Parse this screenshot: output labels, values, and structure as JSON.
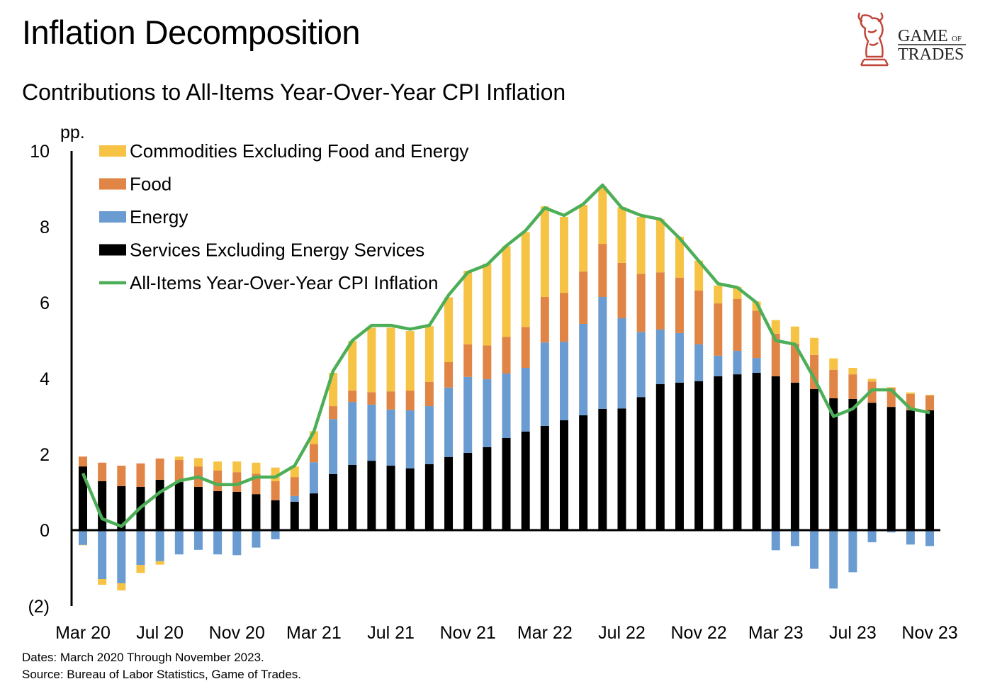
{
  "header": {
    "title": "Inflation Decomposition",
    "subtitle": "Contributions to All-Items Year-Over-Year CPI Inflation"
  },
  "logo": {
    "line1": "GAME",
    "of": "OF",
    "line2": "TRADES"
  },
  "footer": {
    "dates": "Dates: March 2020 Through November 2023.",
    "source": "Source: Bureau of Labor Statistics, Game of Trades."
  },
  "chart_data": {
    "type": "bar",
    "stacked": true,
    "title": "Contributions to All-Items Year-Over-Year CPI Inflation",
    "ylabel": "pp.",
    "ylim": [
      -2,
      10
    ],
    "yticks": [
      10,
      8,
      6,
      4,
      2,
      0,
      -2
    ],
    "ytick_labels": [
      "10",
      "8",
      "6",
      "4",
      "2",
      "0",
      "(2)"
    ],
    "grid": false,
    "legend_position": "top-left",
    "categories": [
      "Mar 20",
      "Apr 20",
      "May 20",
      "Jun 20",
      "Jul 20",
      "Aug 20",
      "Sep 20",
      "Oct 20",
      "Nov 20",
      "Dec 20",
      "Jan 21",
      "Feb 21",
      "Mar 21",
      "Apr 21",
      "May 21",
      "Jun 21",
      "Jul 21",
      "Aug 21",
      "Sep 21",
      "Oct 21",
      "Nov 21",
      "Dec 21",
      "Jan 22",
      "Feb 22",
      "Mar 22",
      "Apr 22",
      "May 22",
      "Jun 22",
      "Jul 22",
      "Aug 22",
      "Sep 22",
      "Oct 22",
      "Nov 22",
      "Dec 22",
      "Jan 23",
      "Feb 23",
      "Mar 23",
      "Apr 23",
      "May 23",
      "Jun 23",
      "Jul 23",
      "Aug 23",
      "Sep 23",
      "Oct 23",
      "Nov 23"
    ],
    "xtick_labels": [
      "Mar 20",
      "Jul 20",
      "Nov 20",
      "Mar 21",
      "Jul 21",
      "Nov 21",
      "Mar 22",
      "Jul 22",
      "Nov 22",
      "Mar 23",
      "Jul 23",
      "Nov 23"
    ],
    "series": [
      {
        "name": "Services Excluding Energy Services",
        "kind": "bar",
        "color": "#000000",
        "values": [
          1.68,
          1.29,
          1.16,
          1.14,
          1.33,
          1.27,
          1.14,
          1.03,
          1.01,
          0.95,
          0.79,
          0.75,
          0.97,
          1.48,
          1.72,
          1.83,
          1.7,
          1.63,
          1.74,
          1.93,
          2.04,
          2.19,
          2.43,
          2.6,
          2.75,
          2.9,
          3.03,
          3.2,
          3.21,
          3.51,
          3.85,
          3.89,
          3.93,
          4.06,
          4.11,
          4.15,
          4.06,
          3.89,
          3.72,
          3.48,
          3.46,
          3.36,
          3.25,
          3.16,
          3.16
        ]
      },
      {
        "name": "Energy",
        "kind": "bar",
        "color": "#6A9BD1",
        "values": [
          -0.39,
          -1.29,
          -1.4,
          -0.92,
          -0.82,
          -0.64,
          -0.52,
          -0.64,
          -0.66,
          -0.46,
          -0.24,
          0.15,
          0.82,
          1.45,
          1.66,
          1.48,
          1.48,
          1.53,
          1.53,
          1.83,
          2.0,
          1.79,
          1.7,
          1.68,
          2.2,
          2.07,
          2.41,
          2.95,
          2.38,
          1.72,
          1.44,
          1.31,
          0.97,
          0.54,
          0.62,
          0.39,
          -0.53,
          -0.42,
          -1.02,
          -1.54,
          -1.11,
          -0.32,
          -0.06,
          -0.38,
          -0.42
        ]
      },
      {
        "name": "Food",
        "kind": "bar",
        "color": "#E08546",
        "values": [
          0.26,
          0.49,
          0.54,
          0.62,
          0.56,
          0.58,
          0.54,
          0.54,
          0.52,
          0.54,
          0.5,
          0.5,
          0.48,
          0.34,
          0.3,
          0.33,
          0.48,
          0.52,
          0.64,
          0.67,
          0.86,
          0.89,
          0.97,
          1.08,
          1.2,
          1.29,
          1.38,
          1.4,
          1.46,
          1.53,
          1.51,
          1.46,
          1.42,
          1.38,
          1.37,
          1.25,
          1.12,
          1.03,
          0.9,
          0.75,
          0.65,
          0.56,
          0.5,
          0.43,
          0.39
        ]
      },
      {
        "name": "Commodities Excluding Food and Energy",
        "kind": "bar",
        "color": "#F6C344",
        "values": [
          -0.01,
          -0.15,
          -0.19,
          -0.21,
          -0.09,
          0.09,
          0.22,
          0.24,
          0.28,
          0.29,
          0.36,
          0.28,
          0.34,
          0.88,
          1.31,
          1.7,
          1.68,
          1.57,
          1.47,
          1.71,
          1.94,
          2.16,
          2.39,
          2.5,
          2.39,
          2.0,
          1.76,
          1.51,
          1.47,
          1.5,
          1.4,
          1.08,
          0.79,
          0.47,
          0.32,
          0.24,
          0.36,
          0.45,
          0.45,
          0.3,
          0.17,
          0.07,
          0.02,
          0.04,
          0.02
        ]
      },
      {
        "name": "All-Items Year-Over-Year CPI Inflation",
        "kind": "line",
        "color": "#4DAE58",
        "values": [
          1.5,
          0.3,
          0.1,
          0.6,
          1.0,
          1.3,
          1.4,
          1.2,
          1.2,
          1.4,
          1.4,
          1.7,
          2.6,
          4.2,
          5.0,
          5.4,
          5.4,
          5.3,
          5.4,
          6.2,
          6.8,
          7.0,
          7.5,
          7.9,
          8.5,
          8.3,
          8.6,
          9.1,
          8.5,
          8.3,
          8.2,
          7.7,
          7.1,
          6.5,
          6.4,
          6.0,
          5.0,
          4.9,
          4.0,
          3.0,
          3.2,
          3.7,
          3.7,
          3.2,
          3.1
        ]
      }
    ],
    "legend_order": [
      "Commodities Excluding Food and Energy",
      "Food",
      "Energy",
      "Services Excluding Energy Services",
      "All-Items Year-Over-Year CPI Inflation"
    ]
  }
}
